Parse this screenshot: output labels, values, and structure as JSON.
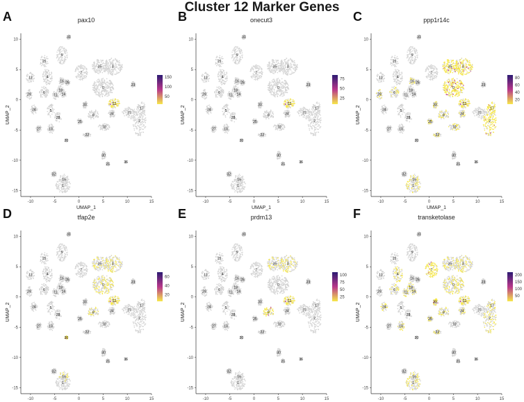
{
  "title": "Cluster 12 Marker Genes",
  "colors": {
    "background_cells": "#d4d4d4",
    "high": "#2c1a72",
    "mid": "#b8378a",
    "low": "#f7e84a"
  },
  "chart_data": {
    "type": "scatter",
    "title": "Cluster 12 Marker Genes",
    "xlabel": "UMAP_1",
    "ylabel": "UMAP_2",
    "xlim": [
      -12,
      15
    ],
    "ylim": [
      -16,
      11
    ],
    "x_ticks": [
      -10,
      -5,
      0,
      5,
      10,
      15
    ],
    "y_ticks": [
      -15,
      -10,
      -5,
      0,
      5,
      10
    ],
    "clusters": [
      {
        "id": "0",
        "x": 5,
        "y": 2
      },
      {
        "id": "1",
        "x": -3.3,
        "y": -14.2
      },
      {
        "id": "2",
        "x": 12.5,
        "y": -3.5
      },
      {
        "id": "3",
        "x": 7,
        "y": 5.5
      },
      {
        "id": "4",
        "x": -6.5,
        "y": 3.8
      },
      {
        "id": "5",
        "x": -5.8,
        "y": -1.8
      },
      {
        "id": "6",
        "x": -7.2,
        "y": 1.2
      },
      {
        "id": "7",
        "x": 0.5,
        "y": 4.5
      },
      {
        "id": "8",
        "x": 3,
        "y": -2.5
      },
      {
        "id": "9",
        "x": -3.5,
        "y": 7.4
      },
      {
        "id": "10",
        "x": 5.2,
        "y": -4.5
      },
      {
        "id": "11",
        "x": -4.8,
        "y": 0.8
      },
      {
        "id": "12",
        "x": 7.3,
        "y": -0.6
      },
      {
        "id": "13",
        "x": -10,
        "y": 3.7
      },
      {
        "id": "14",
        "x": -3.2,
        "y": 0.9
      },
      {
        "id": "15",
        "x": -7.2,
        "y": 6.4
      },
      {
        "id": "16",
        "x": -3.5,
        "y": 3.1
      },
      {
        "id": "17",
        "x": 13,
        "y": -1.4
      },
      {
        "id": "18",
        "x": -3.8,
        "y": 1.6
      },
      {
        "id": "18",
        "x": -5.8,
        "y": -4.8
      },
      {
        "id": "19",
        "x": -3.1,
        "y": -13.2
      },
      {
        "id": "20",
        "x": -2.6,
        "y": -6.7
      },
      {
        "id": "21",
        "x": 6,
        "y": -10.6
      },
      {
        "id": "22",
        "x": 1.7,
        "y": -5.8
      },
      {
        "id": "23",
        "x": 11.2,
        "y": 2.5
      },
      {
        "id": "24",
        "x": -9.3,
        "y": -1.6
      },
      {
        "id": "25",
        "x": 0.2,
        "y": -3.6
      },
      {
        "id": "26",
        "x": -2.4,
        "y": 2.9
      },
      {
        "id": "27",
        "x": -8.3,
        "y": -4.8
      },
      {
        "id": "28",
        "x": -4.3,
        "y": -2.9
      },
      {
        "id": "29",
        "x": -10.3,
        "y": 0.9
      },
      {
        "id": "30",
        "x": 5.1,
        "y": -9.2
      },
      {
        "id": "31",
        "x": -2.1,
        "y": 10.4
      },
      {
        "id": "32",
        "x": -5.2,
        "y": -12.3
      },
      {
        "id": "33",
        "x": 1.2,
        "y": -0.8
      },
      {
        "id": "34",
        "x": 6.8,
        "y": -2.3
      },
      {
        "id": "35",
        "x": 4.3,
        "y": 5.5
      },
      {
        "id": "36",
        "x": 9.7,
        "y": -10.3
      },
      {
        "id": "37",
        "x": 10.4,
        "y": -2.2
      }
    ],
    "panels": [
      {
        "letter": "A",
        "gene": "pax10",
        "legend_ticks": [
          150,
          100,
          50
        ],
        "legend_max": 160,
        "legend_min": 10,
        "hot": [
          "12"
        ],
        "faint": []
      },
      {
        "letter": "B",
        "gene": "onecut3",
        "legend_ticks": [
          75,
          50,
          25
        ],
        "legend_max": 85,
        "legend_min": 10,
        "hot": [
          "12"
        ],
        "faint": []
      },
      {
        "letter": "C",
        "gene": "ppp1r14c",
        "legend_ticks": [
          80,
          60,
          40,
          20
        ],
        "legend_max": 88,
        "legend_min": 8,
        "hot": [
          "12",
          "3",
          "35",
          "0",
          "17",
          "2"
        ],
        "faint": [
          "8",
          "25",
          "22",
          "34",
          "10",
          "1",
          "19",
          "33",
          "16",
          "6",
          "29"
        ]
      },
      {
        "letter": "D",
        "gene": "tfap2e",
        "legend_ticks": [
          60,
          40,
          20
        ],
        "legend_max": 70,
        "legend_min": 5,
        "hot": [
          "12",
          "20"
        ],
        "faint": [
          "3",
          "35",
          "0",
          "19",
          "8"
        ]
      },
      {
        "letter": "E",
        "gene": "prdm13",
        "legend_ticks": [
          100,
          75,
          50,
          25
        ],
        "legend_max": 110,
        "legend_min": 10,
        "hot": [
          "12",
          "8"
        ],
        "faint": [
          "35",
          "3"
        ]
      },
      {
        "letter": "F",
        "gene": "transketolase",
        "legend_ticks": [
          200,
          150,
          100,
          50
        ],
        "legend_max": 220,
        "legend_min": 10,
        "hot": [
          "12",
          "7",
          "33"
        ],
        "faint": [
          "3",
          "35",
          "0",
          "6",
          "4",
          "11",
          "14",
          "18",
          "24",
          "25",
          "2",
          "17",
          "19",
          "1",
          "22",
          "34",
          "8"
        ]
      }
    ]
  }
}
